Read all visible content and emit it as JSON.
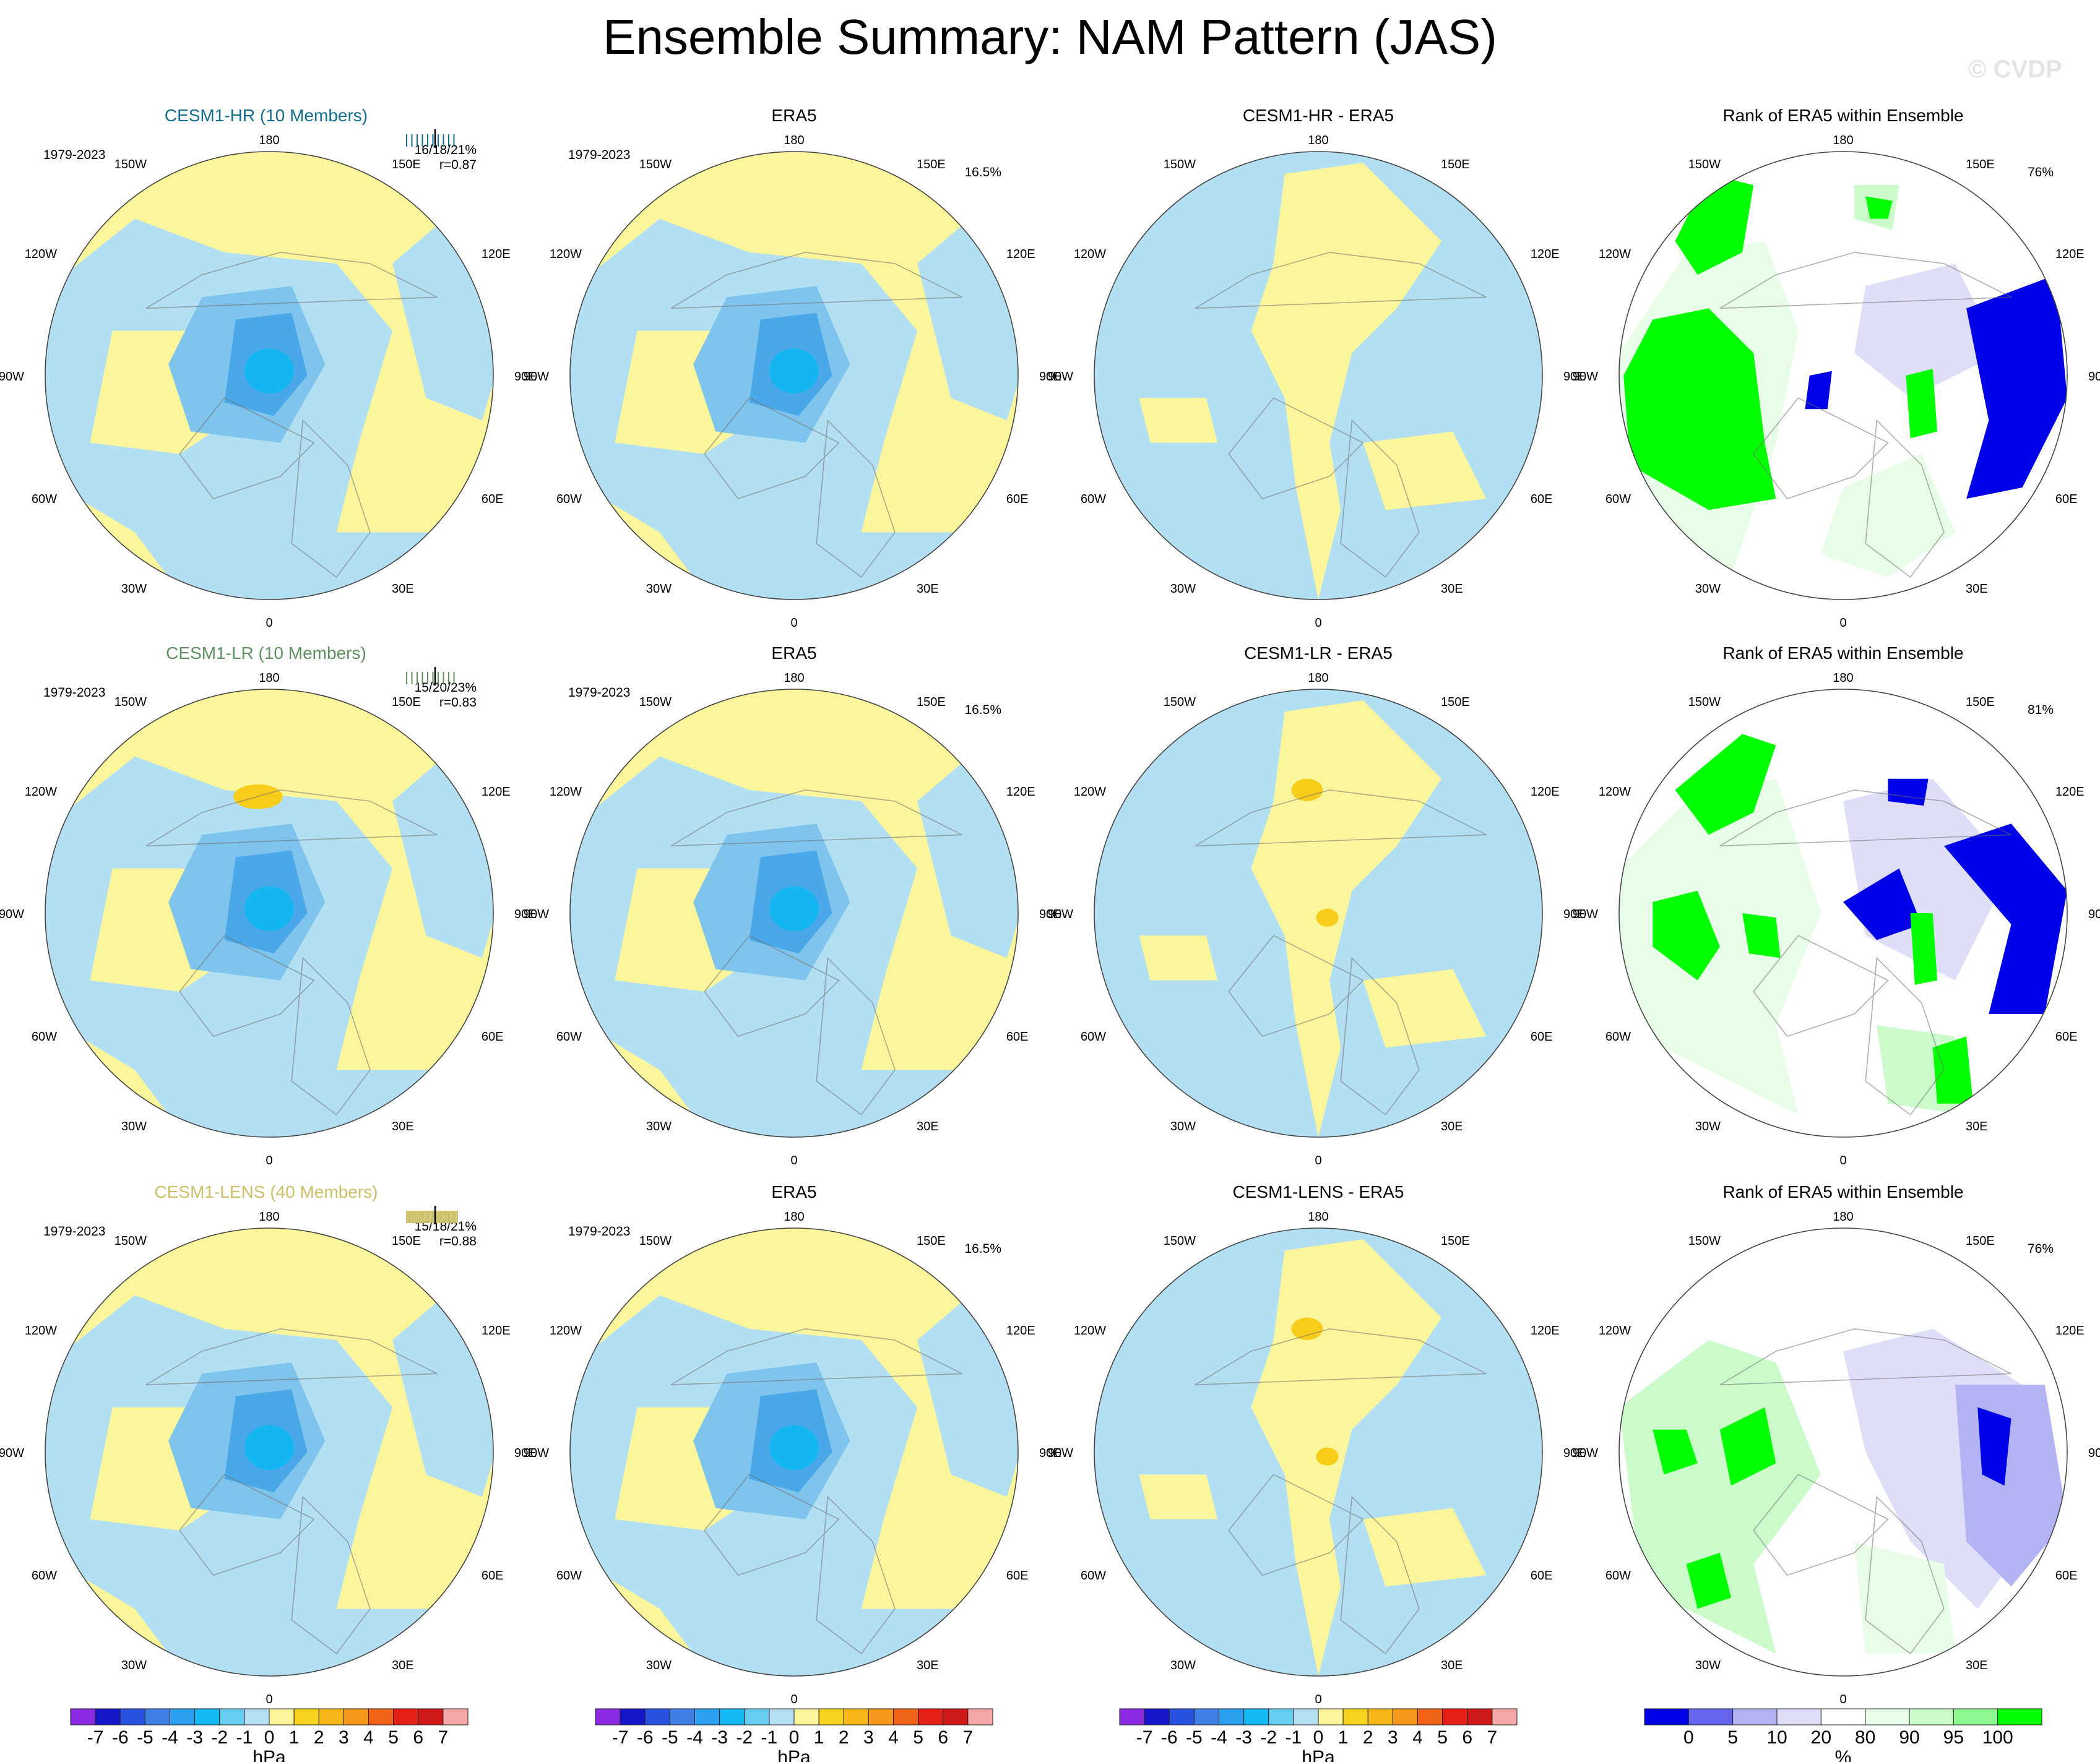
{
  "title": "Ensemble Summary: NAM Pattern (JAS)",
  "watermark": "© CVDP",
  "lon_labels": [
    "180",
    "150E",
    "120E",
    "90E",
    "60E",
    "30E",
    "0",
    "30W",
    "60W",
    "90W",
    "120W",
    "150W"
  ],
  "colors": {
    "ocean_blue": "#b3dff3",
    "land_yellow": "#fbf69b",
    "contour_blue_1": "#7fc4ec",
    "contour_blue_2": "#4aa8e8",
    "contour_blue_3": "#13b6f0",
    "contour_orange": "#f8cc1b",
    "rank_green_dark": "#00ff00",
    "rank_green_light": "#cbfbcb",
    "rank_green_pale": "#e7fde7",
    "rank_blue_dark": "#0000e8",
    "rank_blue_light": "#b3b3f3",
    "rank_blue_pale": "#dedef9",
    "hr_color": "#136e8e",
    "lr_color": "#5e9060",
    "lens_color": "#cbbf6a"
  },
  "chart_data": {
    "type": "heatmap",
    "rows": [
      {
        "model_title": "CESM1-HR (10 Members)",
        "years": "1979-2023",
        "stats": "16/18/21%",
        "corr": "r=0.87",
        "obs_title": "ERA5",
        "obs_years": "1979-2023",
        "obs_pct": "16.5%",
        "diff_title": "CESM1-HR - ERA5",
        "rank_title": "Rank of ERA5 within Ensemble",
        "rank_pct": "76%"
      },
      {
        "model_title": "CESM1-LR (10 Members)",
        "years": "1979-2023",
        "stats": "15/20/23%",
        "corr": "r=0.83",
        "obs_title": "ERA5",
        "obs_years": "1979-2023",
        "obs_pct": "16.5%",
        "diff_title": "CESM1-LR - ERA5",
        "rank_title": "Rank of ERA5 within Ensemble",
        "rank_pct": "81%"
      },
      {
        "model_title": "CESM1-LENS (40 Members)",
        "years": "1979-2023",
        "stats": "15/18/21%",
        "corr": "r=0.88",
        "obs_title": "ERA5",
        "obs_years": "1979-2023",
        "obs_pct": "16.5%",
        "diff_title": "CESM1-LENS - ERA5",
        "rank_title": "Rank of ERA5 within Ensemble",
        "rank_pct": "76%"
      }
    ],
    "colorbar_hpa": {
      "units": "hPa",
      "labels": [
        "-7",
        "-6",
        "-5",
        "-4",
        "-3",
        "-2",
        "-1",
        "0",
        "1",
        "2",
        "3",
        "4",
        "5",
        "6",
        "7"
      ],
      "colors": [
        "#8a2be2",
        "#1515ca",
        "#2a52e0",
        "#3f7fe6",
        "#2b9ff0",
        "#14b8f4",
        "#68cdf2",
        "#b5e0f3",
        "#fbf69b",
        "#f8d520",
        "#f8b818",
        "#f7981a",
        "#f16319",
        "#e62014",
        "#cf1818",
        "#f6a7a7"
      ]
    },
    "colorbar_rank": {
      "units": "%",
      "labels": [
        "0",
        "5",
        "10",
        "20",
        "80",
        "90",
        "95",
        "100"
      ],
      "colors": [
        "#0000e8",
        "#6464ef",
        "#b3b3f3",
        "#dedef9",
        "#ffffff",
        "#e7fde7",
        "#cbfbcb",
        "#90f890",
        "#00ff00"
      ]
    }
  }
}
